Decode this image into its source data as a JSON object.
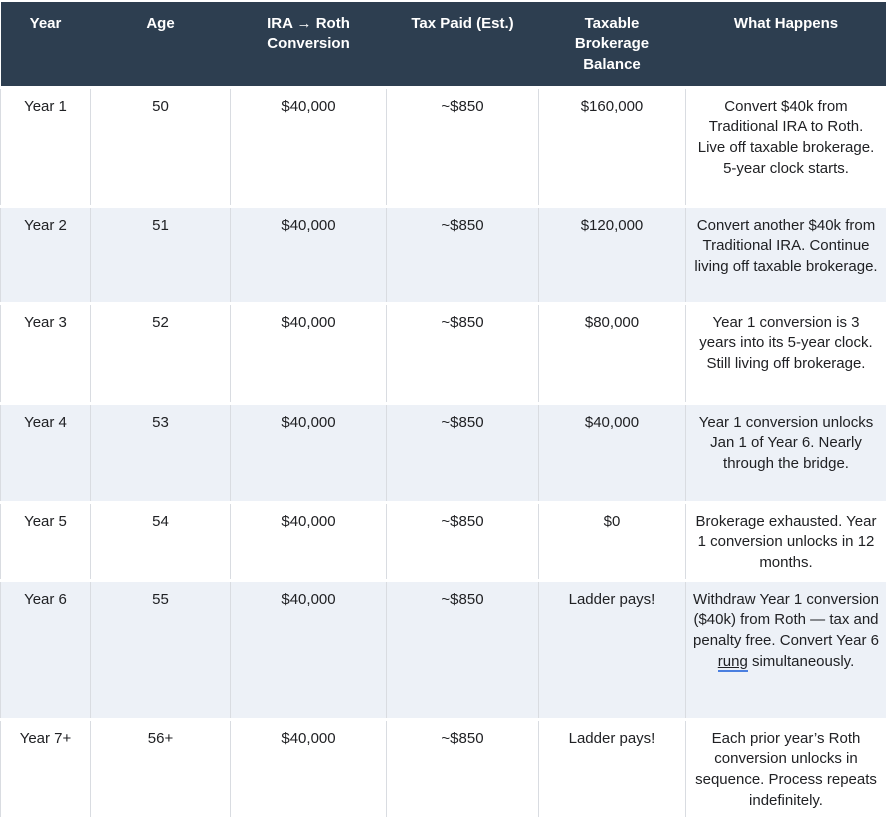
{
  "colors": {
    "header_bg": "#2d3e50",
    "header_text": "#ffffff",
    "row_alt": "#edf1f7",
    "border": "#d9dce1",
    "text": "#202124",
    "spell_underline": "#4a7fe0"
  },
  "table": {
    "columns": [
      "Year",
      "Age",
      "IRA → Roth Conversion",
      "Tax Paid (Est.)",
      "Taxable Brokerage Balance",
      "What Happens"
    ],
    "rows": [
      {
        "year": "Year 1",
        "age": "50",
        "conversion": "$40,000",
        "tax": "~$850",
        "balance": "$160,000",
        "what_happens": "Convert $40k from Traditional IRA to Roth. Live off taxable brokerage. 5-year clock starts."
      },
      {
        "year": "Year 2",
        "age": "51",
        "conversion": "$40,000",
        "tax": "~$850",
        "balance": "$120,000",
        "what_happens": "Convert another $40k from Traditional IRA. Continue living off taxable brokerage."
      },
      {
        "year": "Year 3",
        "age": "52",
        "conversion": "$40,000",
        "tax": "~$850",
        "balance": "$80,000",
        "what_happens": "Year 1 conversion is 3 years into its 5-year clock. Still living off brokerage."
      },
      {
        "year": "Year 4",
        "age": "53",
        "conversion": "$40,000",
        "tax": "~$850",
        "balance": "$40,000",
        "what_happens": "Year 1 conversion unlocks Jan 1 of Year 6. Nearly through the bridge."
      },
      {
        "year": "Year 5",
        "age": "54",
        "conversion": "$40,000",
        "tax": "~$850",
        "balance": "$0",
        "what_happens": "Brokerage exhausted. Year 1 conversion unlocks in 12 months."
      },
      {
        "year": "Year 6",
        "age": "55",
        "conversion": "$40,000",
        "tax": "~$850",
        "balance": "Ladder pays!",
        "what_happens_pre": "Withdraw Year 1 conversion ($40k) from Roth — tax and penalty free. Convert Year 6 ",
        "what_happens_link": "rung",
        "what_happens_post": " simultaneously."
      },
      {
        "year": "Year 7+",
        "age": "56+",
        "conversion": "$40,000",
        "tax": "~$850",
        "balance": "Ladder pays!",
        "what_happens": "Each prior year’s Roth conversion unlocks in sequence. Process repeats indefinitely."
      }
    ]
  }
}
